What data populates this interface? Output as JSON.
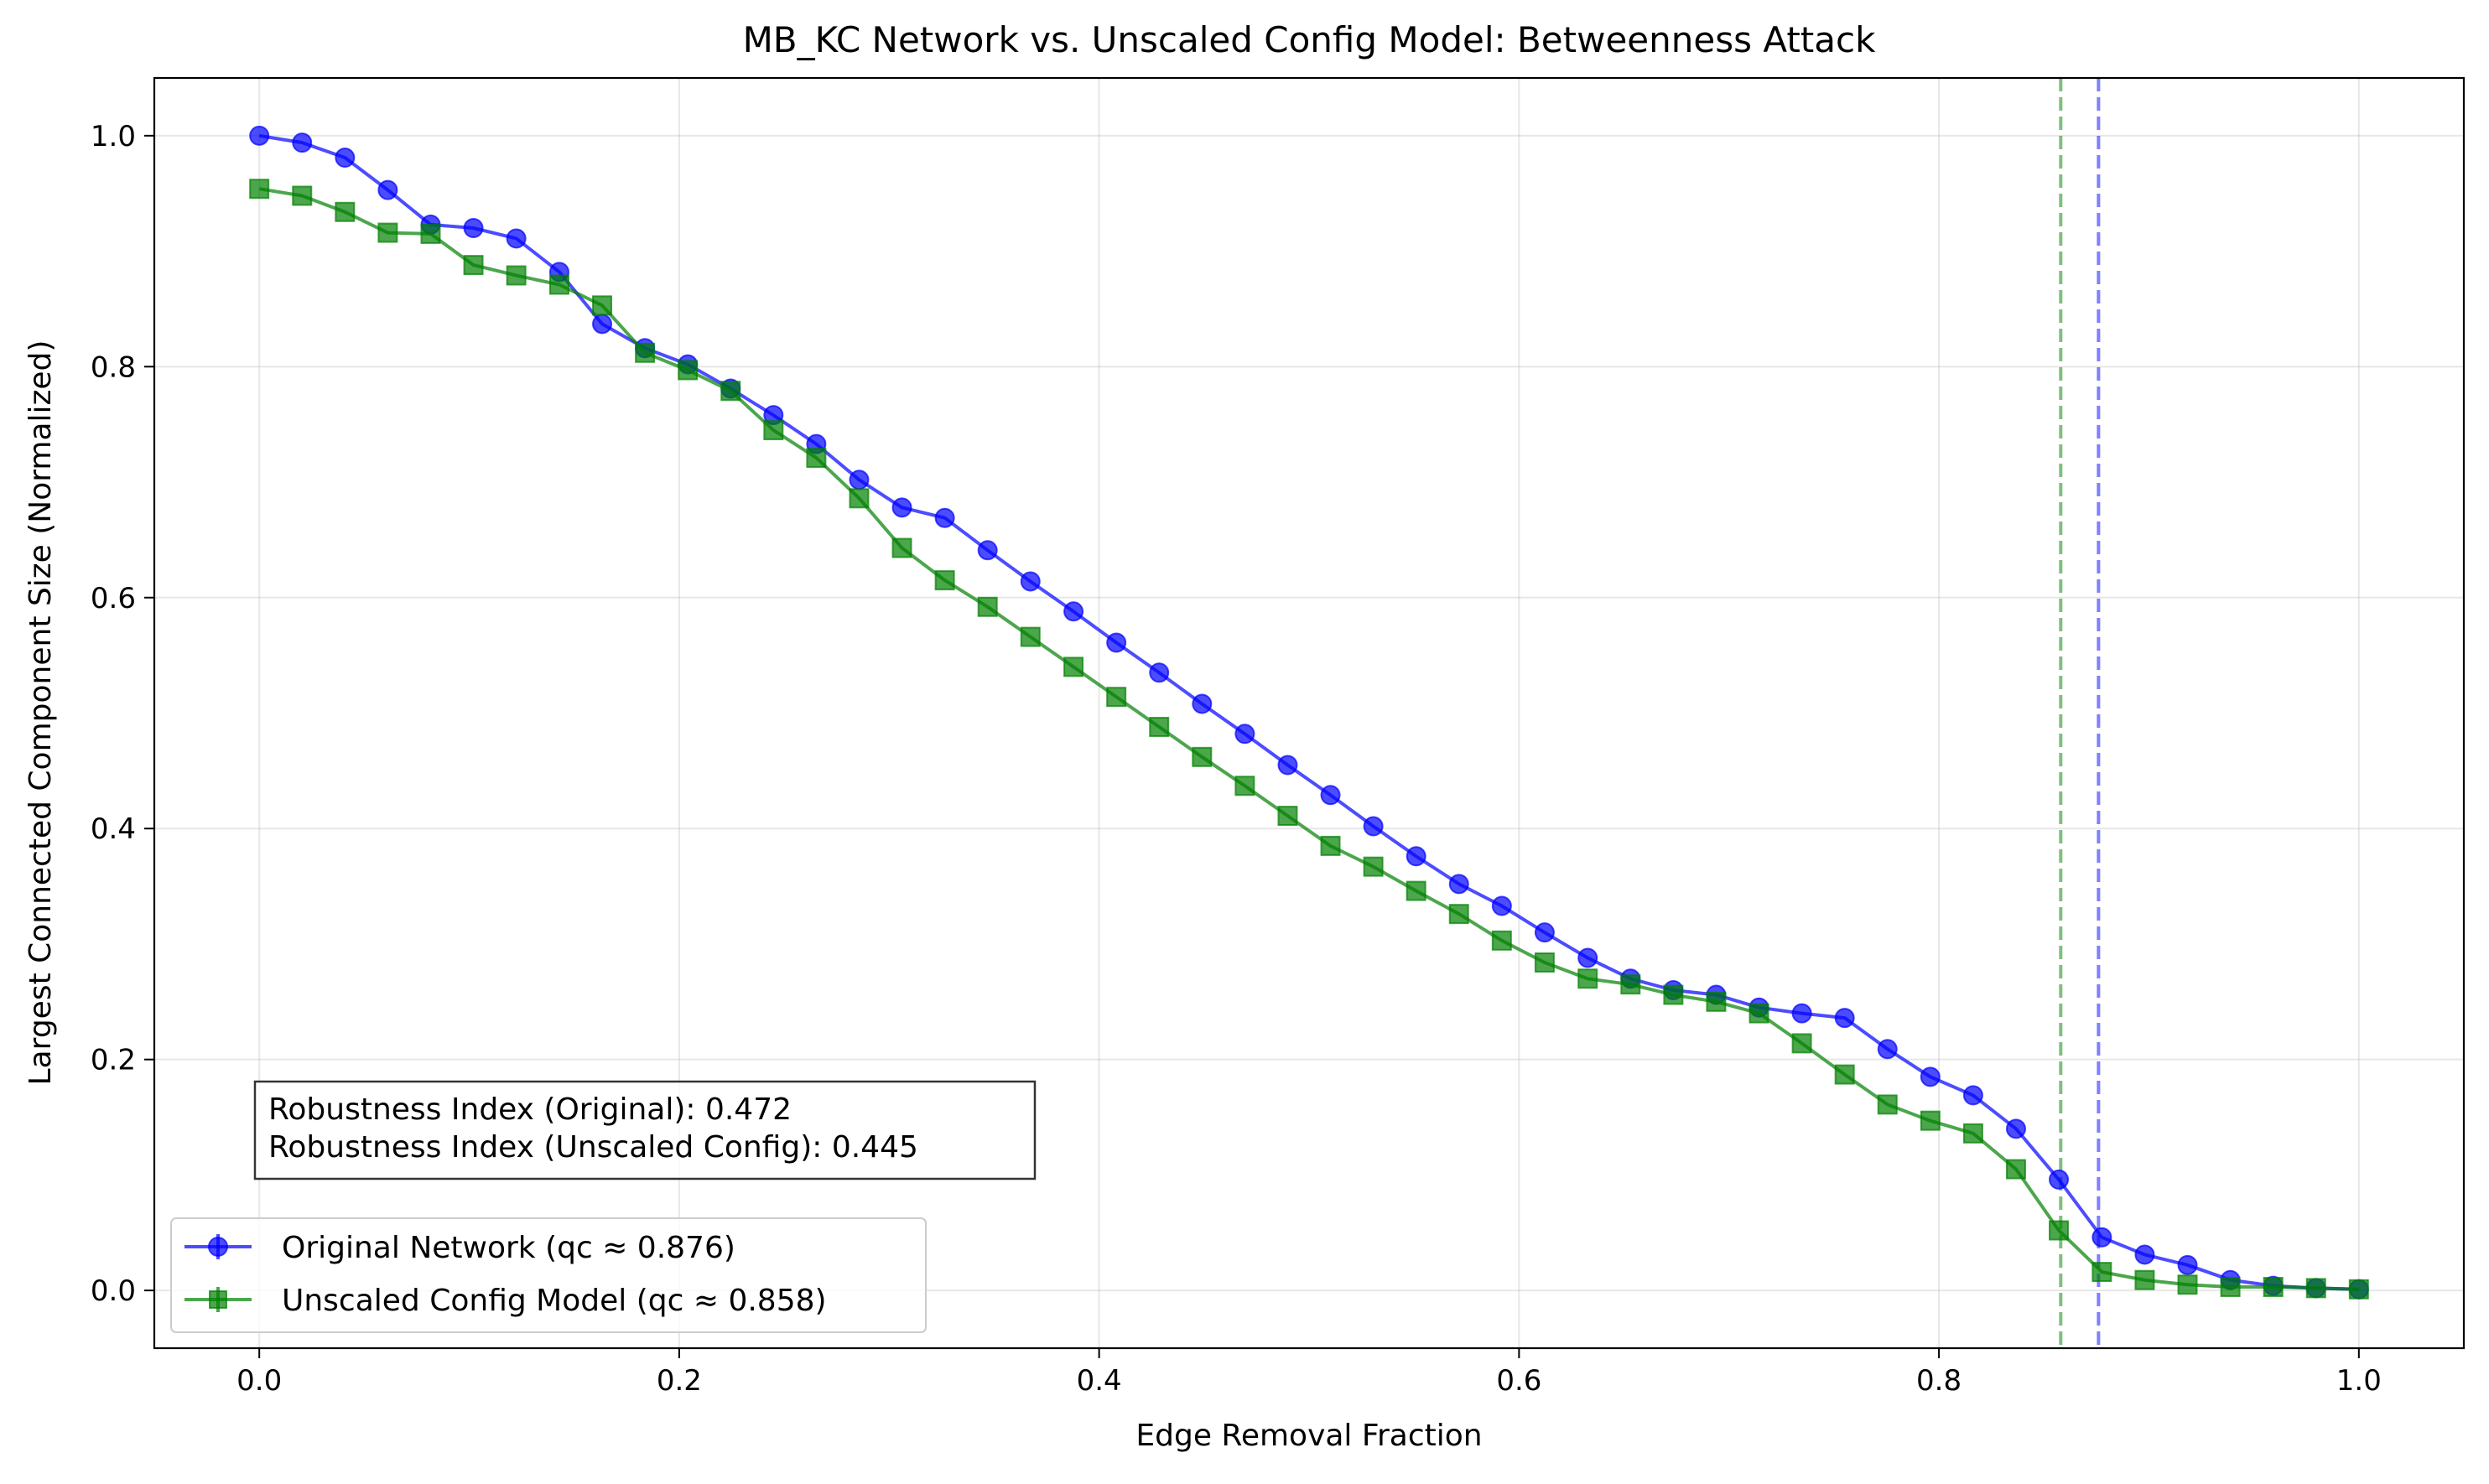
{
  "chart_data": {
    "type": "line",
    "title": "MB_KC Network vs. Unscaled Config Model: Betweenness Attack",
    "xlabel": "Edge Removal Fraction",
    "ylabel": "Largest Connected Component Size (Normalized)",
    "xlim": [
      -0.05,
      1.05
    ],
    "ylim": [
      -0.05,
      1.05
    ],
    "xticks": [
      0.0,
      0.2,
      0.4,
      0.6,
      0.8,
      1.0
    ],
    "yticks": [
      0.0,
      0.2,
      0.4,
      0.6,
      0.8,
      1.0
    ],
    "xtick_labels": [
      "0.0",
      "0.2",
      "0.4",
      "0.6",
      "0.8",
      "1.0"
    ],
    "ytick_labels": [
      "0.0",
      "0.2",
      "0.4",
      "0.6",
      "0.8",
      "1.0"
    ],
    "grid": true,
    "legend_position": "lower-left",
    "x": [
      0.0,
      0.0204,
      0.0408,
      0.0612,
      0.0816,
      0.102,
      0.1224,
      0.1429,
      0.1633,
      0.1837,
      0.2041,
      0.2245,
      0.2449,
      0.2653,
      0.2857,
      0.3061,
      0.3265,
      0.3469,
      0.3673,
      0.3878,
      0.4082,
      0.4286,
      0.449,
      0.4694,
      0.4898,
      0.5102,
      0.5306,
      0.551,
      0.5714,
      0.5918,
      0.6122,
      0.6327,
      0.6531,
      0.6735,
      0.6939,
      0.7143,
      0.7347,
      0.7551,
      0.7755,
      0.7959,
      0.8163,
      0.8367,
      0.8571,
      0.8776,
      0.898,
      0.9184,
      0.9388,
      0.9592,
      0.9796,
      1.0
    ],
    "series": [
      {
        "name": "Original Network (qc ≈ 0.876)",
        "color": "#0000ff",
        "marker": "circle",
        "values": [
          1.0,
          0.994,
          0.981,
          0.953,
          0.923,
          0.92,
          0.911,
          0.882,
          0.837,
          0.816,
          0.802,
          0.781,
          0.758,
          0.733,
          0.702,
          0.678,
          0.669,
          0.641,
          0.614,
          0.588,
          0.561,
          0.535,
          0.508,
          0.482,
          0.455,
          0.429,
          0.402,
          0.376,
          0.352,
          0.333,
          0.31,
          0.288,
          0.27,
          0.26,
          0.256,
          0.245,
          0.24,
          0.236,
          0.209,
          0.185,
          0.169,
          0.14,
          0.096,
          0.046,
          0.031,
          0.022,
          0.009,
          0.004,
          0.002,
          0.001
        ]
      },
      {
        "name": "Unscaled Config Model (qc ≈ 0.858)",
        "color": "#008000",
        "marker": "square",
        "values": [
          0.954,
          0.948,
          0.934,
          0.916,
          0.915,
          0.888,
          0.879,
          0.871,
          0.853,
          0.812,
          0.797,
          0.779,
          0.745,
          0.721,
          0.686,
          0.643,
          0.615,
          0.592,
          0.566,
          0.54,
          0.514,
          0.488,
          0.462,
          0.437,
          0.411,
          0.385,
          0.367,
          0.346,
          0.326,
          0.303,
          0.284,
          0.27,
          0.265,
          0.256,
          0.25,
          0.24,
          0.214,
          0.187,
          0.161,
          0.147,
          0.136,
          0.105,
          0.052,
          0.016,
          0.009,
          0.005,
          0.003,
          0.003,
          0.002,
          0.001
        ]
      }
    ],
    "vlines": [
      {
        "x": 0.858,
        "color": "#008000",
        "style": "dashed"
      },
      {
        "x": 0.876,
        "color": "#0000ff",
        "style": "dashed"
      }
    ],
    "annotation": {
      "line1": "Robustness Index (Original): 0.472",
      "line2": "Robustness Index (Unscaled Config): 0.445"
    }
  }
}
